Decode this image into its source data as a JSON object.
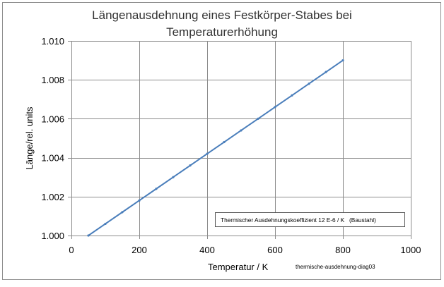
{
  "chart_data": {
    "type": "line",
    "title_line1": "Längenausdehnung eines Festkörper-Stabes bei",
    "title_line2": "Temperaturerhöhung",
    "xlabel": "Temperatur / K",
    "ylabel": "Länge/rel. units",
    "xlim": [
      0,
      1000
    ],
    "ylim": [
      1.0,
      1.01
    ],
    "x_ticks": [
      "0",
      "200",
      "400",
      "600",
      "800",
      "1000"
    ],
    "y_ticks": [
      "1.000",
      "1.002",
      "1.004",
      "1.006",
      "1.008",
      "1.010"
    ],
    "grid": true,
    "legend_note": "Thermischer Ausdehnungskoeffizient 12 E-6 / K   (Baustahl)",
    "watermark": "thermische-ausdehnung-diag03",
    "series": [
      {
        "color": "#4a7ebb",
        "x": [
          50,
          100,
          150,
          200,
          250,
          300,
          350,
          400,
          450,
          500,
          550,
          600,
          650,
          700,
          750,
          800
        ],
        "y": [
          1.0,
          1.0006,
          1.0012,
          1.0018,
          1.0024,
          1.003,
          1.0036,
          1.0042,
          1.0048,
          1.0054,
          1.006,
          1.0066,
          1.0072,
          1.0078,
          1.0084,
          1.009
        ]
      }
    ]
  }
}
